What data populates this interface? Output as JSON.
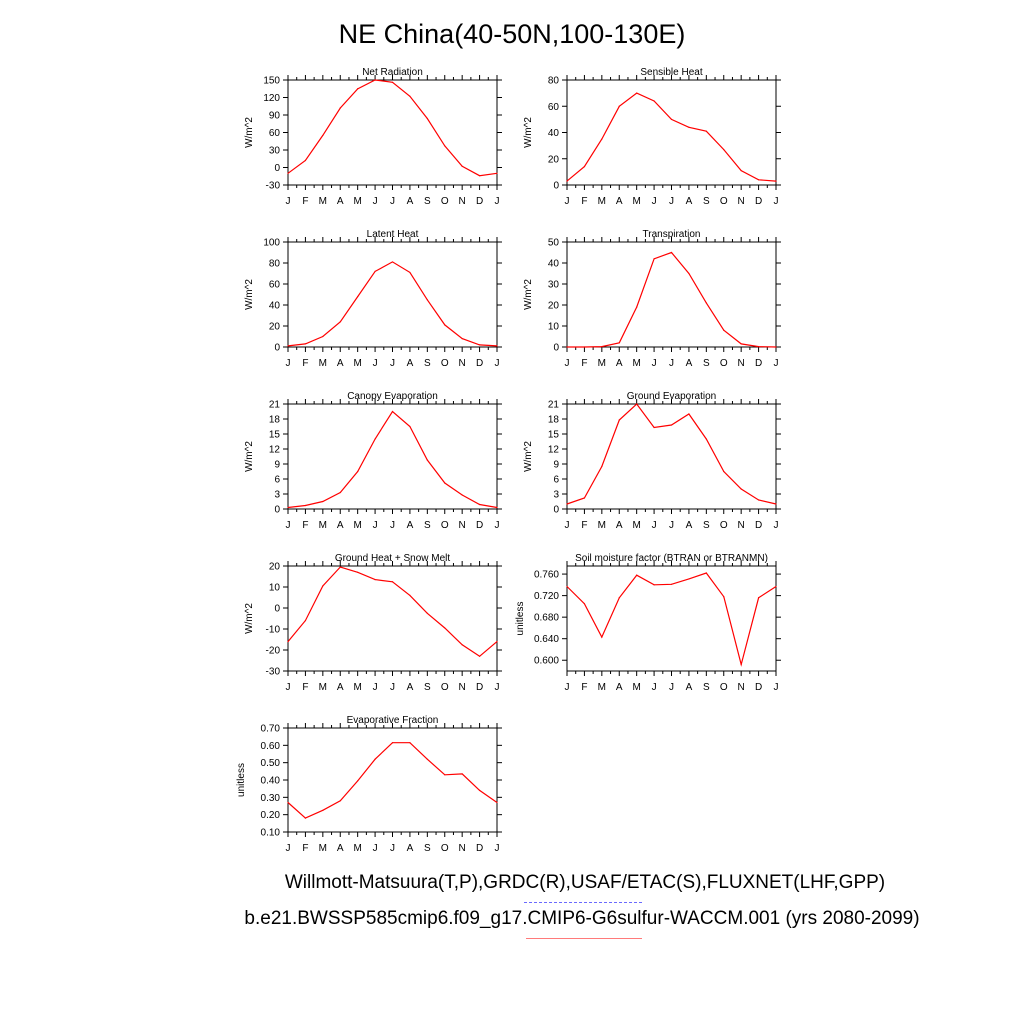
{
  "title": "NE China(40-50N,100-130E)",
  "captions": {
    "observations": "Willmott-Matsuura(T,P),GRDC(R),USAF/ETAC(S),FLUXNET(LHF,GPP)",
    "case": "b.e21.BWSSP585cmip6.f09_g17.CMIP6-G6sulfur-WACCM.001 (yrs 2080-2099)"
  },
  "colors": {
    "line": "#ff0000",
    "axis": "#000000",
    "obs_underline": "#6a6aff",
    "case_underline": "#ff7a7a"
  },
  "chart_data": [
    {
      "type": "line",
      "title": "Net Radiation",
      "ylabel": "W/m^2",
      "categories": [
        "J",
        "F",
        "M",
        "A",
        "M",
        "J",
        "J",
        "A",
        "S",
        "O",
        "N",
        "D",
        "J"
      ],
      "values": [
        -10,
        12,
        55,
        102,
        135,
        150,
        146,
        122,
        84,
        37,
        2,
        -14,
        -10
      ],
      "ylim": [
        -30,
        150
      ],
      "yticks": [
        -30,
        0,
        30,
        60,
        90,
        120,
        150
      ]
    },
    {
      "type": "line",
      "title": "Sensible Heat",
      "ylabel": "W/m^2",
      "categories": [
        "J",
        "F",
        "M",
        "A",
        "M",
        "J",
        "J",
        "A",
        "S",
        "O",
        "N",
        "D",
        "J"
      ],
      "values": [
        3,
        14,
        35,
        60,
        70,
        64,
        50,
        44,
        41,
        27,
        11,
        4,
        3
      ],
      "ylim": [
        0,
        80
      ],
      "yticks": [
        0,
        20,
        40,
        60,
        80
      ]
    },
    {
      "type": "line",
      "title": "Latent Heat",
      "ylabel": "W/m^2",
      "categories": [
        "J",
        "F",
        "M",
        "A",
        "M",
        "J",
        "J",
        "A",
        "S",
        "O",
        "N",
        "D",
        "J"
      ],
      "values": [
        1,
        3,
        10,
        24,
        48,
        72,
        81,
        71,
        45,
        21,
        8,
        2,
        1
      ],
      "ylim": [
        0,
        100
      ],
      "yticks": [
        0,
        20,
        40,
        60,
        80,
        100
      ]
    },
    {
      "type": "line",
      "title": "Transpiration",
      "ylabel": "W/m^2",
      "categories": [
        "J",
        "F",
        "M",
        "A",
        "M",
        "J",
        "J",
        "A",
        "S",
        "O",
        "N",
        "D",
        "J"
      ],
      "values": [
        0,
        0,
        0.2,
        2,
        19,
        42,
        45,
        35,
        21,
        8,
        1.5,
        0.2,
        0
      ],
      "ylim": [
        0,
        50
      ],
      "yticks": [
        0,
        10,
        20,
        30,
        40,
        50
      ]
    },
    {
      "type": "line",
      "title": "Canopy Evaporation",
      "ylabel": "W/m^2",
      "categories": [
        "J",
        "F",
        "M",
        "A",
        "M",
        "J",
        "J",
        "A",
        "S",
        "O",
        "N",
        "D",
        "J"
      ],
      "values": [
        0.3,
        0.7,
        1.5,
        3.3,
        7.5,
        14,
        19.5,
        16.5,
        9.8,
        5.2,
        2.8,
        0.9,
        0.3
      ],
      "ylim": [
        0,
        21
      ],
      "yticks": [
        0,
        3,
        6,
        9,
        12,
        15,
        18,
        21
      ]
    },
    {
      "type": "line",
      "title": "Ground Evaporation",
      "ylabel": "W/m^2",
      "categories": [
        "J",
        "F",
        "M",
        "A",
        "M",
        "J",
        "J",
        "A",
        "S",
        "O",
        "N",
        "D",
        "J"
      ],
      "values": [
        1,
        2.2,
        8.5,
        17.8,
        21,
        16.3,
        16.8,
        19,
        14,
        7.5,
        4,
        1.8,
        1
      ],
      "ylim": [
        0,
        21
      ],
      "yticks": [
        0,
        3,
        6,
        9,
        12,
        15,
        18,
        21
      ]
    },
    {
      "type": "line",
      "title": "Ground Heat + Snow Melt",
      "ylabel": "W/m^2",
      "categories": [
        "J",
        "F",
        "M",
        "A",
        "M",
        "J",
        "J",
        "A",
        "S",
        "O",
        "N",
        "D",
        "J"
      ],
      "values": [
        -16,
        -6,
        10.5,
        19.5,
        17,
        13.5,
        12.5,
        6,
        -2.5,
        -9.5,
        -17.5,
        -23,
        -16
      ],
      "ylim": [
        -30,
        20
      ],
      "yticks": [
        -30,
        -20,
        -10,
        0,
        10,
        20
      ]
    },
    {
      "type": "line",
      "title": "Soil moisture factor (BTRAN or BTRANMN)",
      "ylabel": "unitless",
      "categories": [
        "J",
        "F",
        "M",
        "A",
        "M",
        "J",
        "J",
        "A",
        "S",
        "O",
        "N",
        "D",
        "J"
      ],
      "values": [
        0.737,
        0.705,
        0.643,
        0.716,
        0.758,
        0.74,
        0.741,
        0.751,
        0.762,
        0.718,
        0.592,
        0.716,
        0.737
      ],
      "ylim": [
        0.58,
        0.775
      ],
      "yticks": [
        0.6,
        0.64,
        0.68,
        0.72,
        0.76
      ],
      "tickformat": "3dp"
    },
    {
      "type": "line",
      "title": "Evaporative Fraction",
      "ylabel": "unitless",
      "categories": [
        "J",
        "F",
        "M",
        "A",
        "M",
        "J",
        "J",
        "A",
        "S",
        "O",
        "N",
        "D",
        "J"
      ],
      "values": [
        0.27,
        0.18,
        0.225,
        0.28,
        0.395,
        0.52,
        0.615,
        0.615,
        0.52,
        0.43,
        0.435,
        0.34,
        0.27
      ],
      "ylim": [
        0.1,
        0.7
      ],
      "yticks": [
        0.1,
        0.2,
        0.3,
        0.4,
        0.5,
        0.6,
        0.7
      ],
      "tickformat": "2dp"
    }
  ]
}
